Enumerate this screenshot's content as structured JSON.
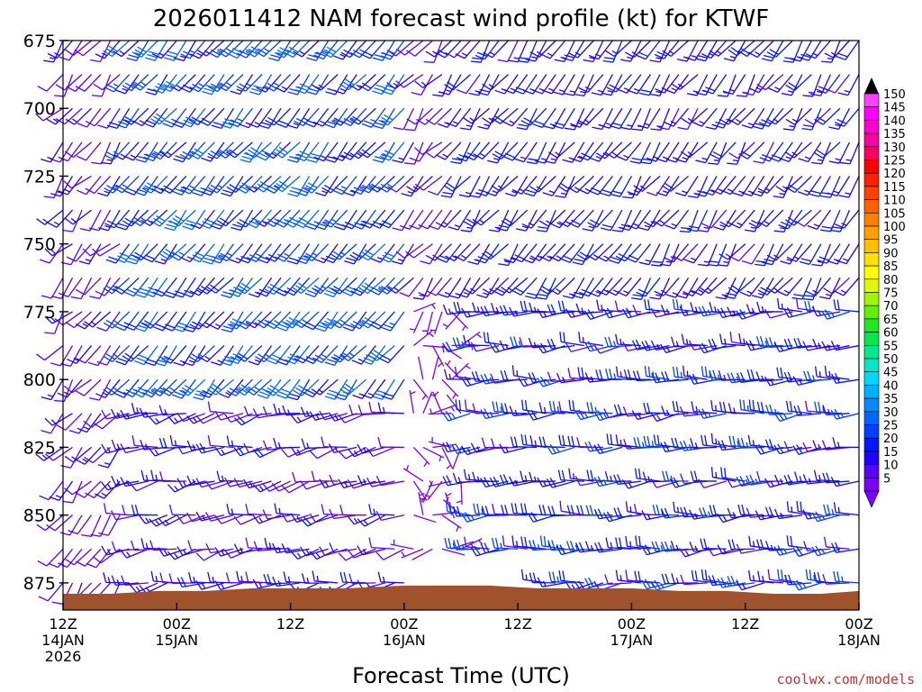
{
  "chart_data": {
    "type": "wind_barb_profile",
    "title": "2026011412 NAM forecast wind profile (kt) for KTWF",
    "xlabel": "Forecast Time (UTC)",
    "ylabel": "",
    "y_axis": {
      "quantity": "pressure (mb)",
      "inverted": true,
      "ylim": [
        885,
        675
      ],
      "ticks": [
        "675",
        "700",
        "725",
        "750",
        "775",
        "800",
        "825",
        "850",
        "875"
      ]
    },
    "x_axis": {
      "range": [
        "2026-01-14 12Z",
        "2026-01-18 00Z"
      ],
      "ticks": [
        {
          "line1": "12Z",
          "line2": "14JAN",
          "line3": "2026"
        },
        {
          "line1": "00Z",
          "line2": "15JAN",
          "line3": ""
        },
        {
          "line1": "12Z",
          "line2": "",
          "line3": ""
        },
        {
          "line1": "00Z",
          "line2": "16JAN",
          "line3": ""
        },
        {
          "line1": "12Z",
          "line2": "",
          "line3": ""
        },
        {
          "line1": "00Z",
          "line2": "17JAN",
          "line3": ""
        },
        {
          "line1": "12Z",
          "line2": "",
          "line3": ""
        },
        {
          "line1": "00Z",
          "line2": "18JAN",
          "line3": ""
        }
      ]
    },
    "time_step_hours": 1,
    "pressure_levels_mb": [
      675,
      687.5,
      700,
      712.5,
      725,
      737.5,
      750,
      762.5,
      775,
      787.5,
      800,
      812.5,
      825,
      837.5,
      850,
      862.5,
      875
    ],
    "wind_regions": [
      {
        "hours": [
          0,
          6
        ],
        "levels": "all",
        "speed_kt": [
          8,
          14
        ],
        "direction_deg": [
          200,
          240
        ]
      },
      {
        "hours": [
          6,
          36
        ],
        "levels": [
          675,
          800
        ],
        "speed_kt": [
          15,
          32
        ],
        "direction_deg": [
          210,
          230
        ]
      },
      {
        "hours": [
          6,
          36
        ],
        "levels": [
          800,
          875
        ],
        "speed_kt": [
          8,
          18
        ],
        "direction_deg": [
          240,
          275
        ]
      },
      {
        "hours": [
          36,
          42
        ],
        "levels": [
          770,
          875
        ],
        "speed_kt": [
          2,
          6
        ],
        "direction_deg": "variable"
      },
      {
        "hours": [
          42,
          84
        ],
        "levels": [
          770,
          875
        ],
        "speed_kt": [
          10,
          25
        ],
        "direction_deg": [
          250,
          280
        ]
      },
      {
        "hours": [
          42,
          84
        ],
        "levels": [
          675,
          770
        ],
        "speed_kt": [
          12,
          20
        ],
        "direction_deg": [
          200,
          230
        ]
      }
    ],
    "terrain_surface_mb": {
      "hours": [
        0,
        5,
        10,
        15,
        20,
        25,
        30,
        36,
        40,
        45,
        50,
        55,
        60,
        65,
        70,
        75,
        80,
        84
      ],
      "pressure": [
        879,
        879,
        878,
        878,
        877,
        877,
        877,
        876,
        876,
        876,
        877,
        877,
        877,
        878,
        878,
        879,
        879,
        878
      ]
    },
    "colorbar": {
      "ticks": [
        5,
        10,
        15,
        20,
        25,
        30,
        35,
        40,
        45,
        50,
        55,
        60,
        65,
        70,
        75,
        80,
        85,
        90,
        95,
        100,
        105,
        110,
        115,
        120,
        125,
        130,
        135,
        140,
        145,
        150
      ],
      "colors": [
        "#7a00ff",
        "#5a00ff",
        "#1f00ff",
        "#0018ff",
        "#0040ff",
        "#0066ff",
        "#008cff",
        "#00b2ff",
        "#00d8ff",
        "#00e8c8",
        "#00e890",
        "#00e850",
        "#20e820",
        "#60f000",
        "#a0f500",
        "#e0f800",
        "#ffff00",
        "#ffe000",
        "#ffc000",
        "#ffa000",
        "#ff8000",
        "#ff6000",
        "#ff4000",
        "#ff2000",
        "#ff0000",
        "#ff0060",
        "#ff00a0",
        "#ff00d0",
        "#ff00ff",
        "#ff40ff"
      ]
    },
    "terrain_color": "#a0522d"
  },
  "credit": "coolwx.com/models"
}
